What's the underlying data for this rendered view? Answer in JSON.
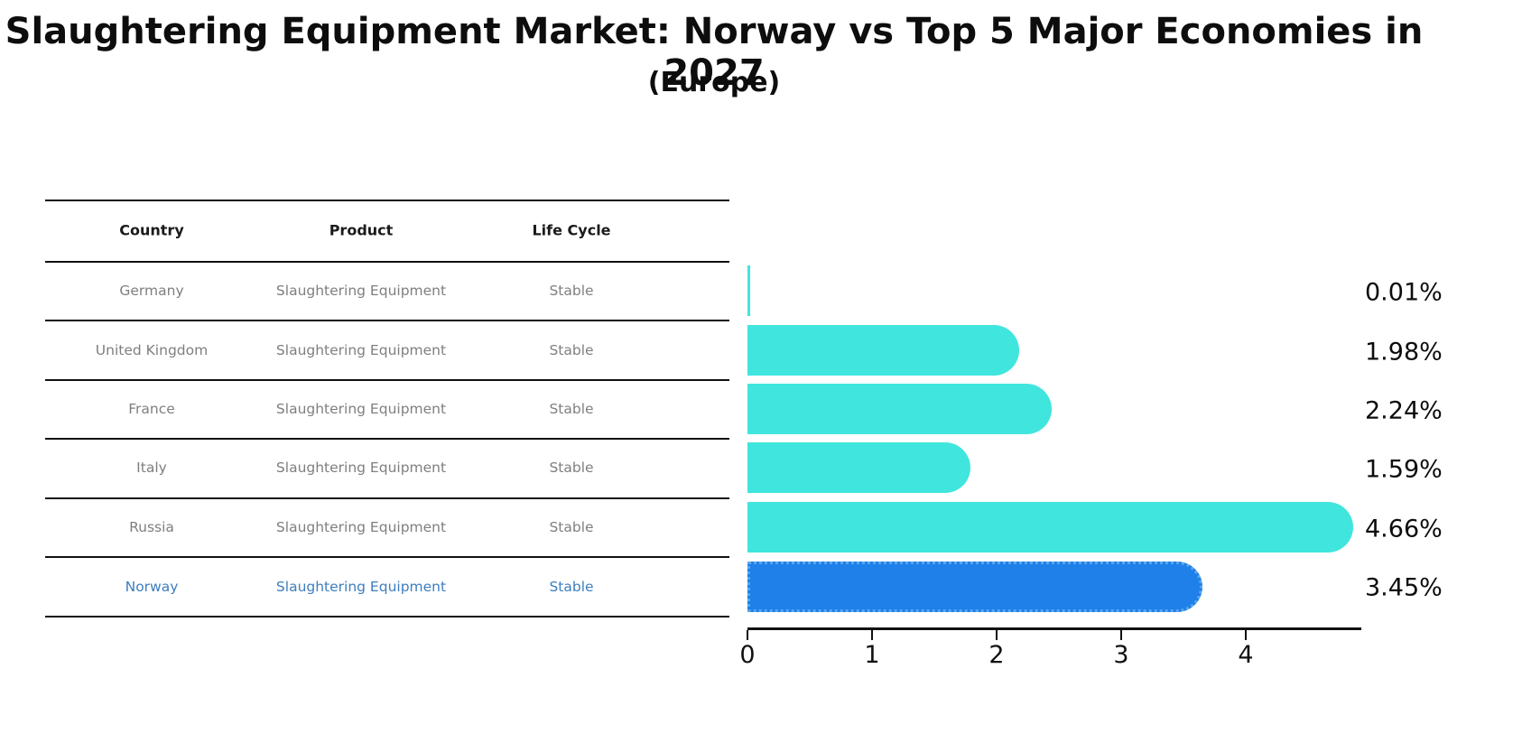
{
  "title": "Slaughtering Equipment Market: Norway vs Top 5 Major Economies in 2027",
  "subtitle": "(Europe)",
  "table": {
    "headers": {
      "country": "Country",
      "product": "Product",
      "life_cycle": "Life Cycle"
    },
    "rows": [
      {
        "country": "Germany",
        "product": "Slaughtering Equipment",
        "life_cycle": "Stable",
        "highlight": false
      },
      {
        "country": "United Kingdom",
        "product": "Slaughtering Equipment",
        "life_cycle": "Stable",
        "highlight": false
      },
      {
        "country": "France",
        "product": "Slaughtering Equipment",
        "life_cycle": "Stable",
        "highlight": false
      },
      {
        "country": "Italy",
        "product": "Slaughtering Equipment",
        "life_cycle": "Stable",
        "highlight": false
      },
      {
        "country": "Russia",
        "product": "Slaughtering Equipment",
        "life_cycle": "Stable",
        "highlight": false
      },
      {
        "country": "Norway",
        "product": "Slaughtering Equipment",
        "life_cycle": "Stable",
        "highlight": true
      }
    ]
  },
  "chart_data": {
    "type": "bar",
    "orientation": "horizontal",
    "categories": [
      "Germany",
      "United Kingdom",
      "France",
      "Italy",
      "Russia",
      "Norway"
    ],
    "values": [
      0.01,
      1.98,
      2.24,
      1.59,
      4.66,
      3.45
    ],
    "labels": [
      "0.01%",
      "1.98%",
      "2.24%",
      "1.59%",
      "4.66%",
      "3.45%"
    ],
    "highlight_category": "Norway",
    "x_ticks": [
      "0",
      "1",
      "2",
      "3",
      "4"
    ],
    "xlim": [
      0,
      4.92
    ],
    "grid": false,
    "legend": "none",
    "colors": {
      "bar_default": "#40e5dd",
      "bar_highlight": "#1e80e8",
      "bar_highlight_edge": "#5aa7ee",
      "highlight_text": "#3d7ebf",
      "table_text": "#7f7f7f",
      "axis_text": "#111111"
    }
  }
}
